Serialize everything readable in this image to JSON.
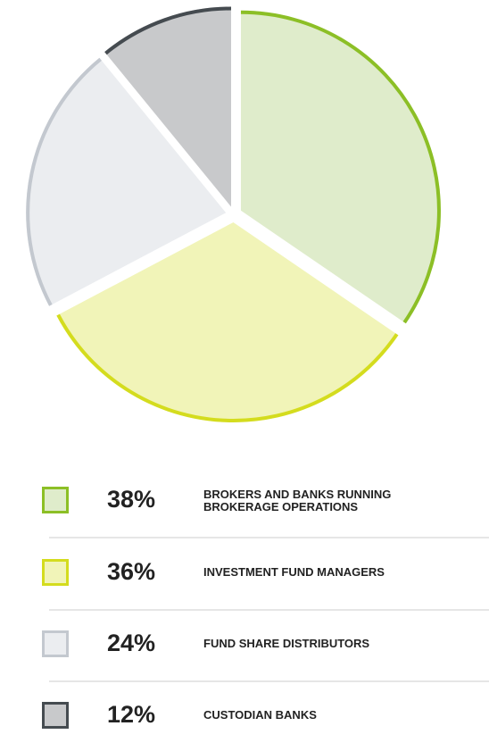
{
  "chart_data": {
    "type": "pie",
    "categories": [
      "BROKERS AND BANKS RUNNING BROKERAGE OPERATIONS",
      "INVESTMENT FUND MANAGERS",
      "FUND SHARE DISTRIBUTORS",
      "CUSTODIAN BANKS"
    ],
    "values": [
      38,
      36,
      24,
      12
    ],
    "value_labels": [
      "38%",
      "36%",
      "24%",
      "12%"
    ],
    "colors": [
      "#dfeccb",
      "#f1f4b8",
      "#ebedf0",
      "#c8c9cb"
    ],
    "edge_colors": [
      "#8cbf26",
      "#d4dc1e",
      "#c3c8cf",
      "#454b50"
    ]
  }
}
